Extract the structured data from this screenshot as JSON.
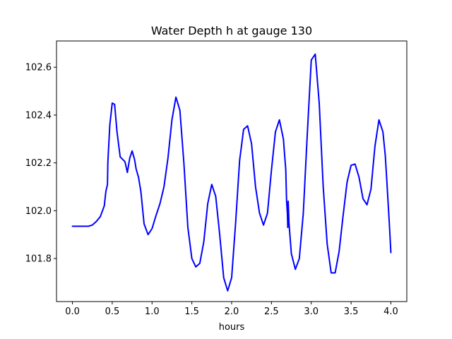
{
  "chart_data": {
    "type": "line",
    "title": "Water Depth h at gauge 130",
    "xlabel": "hours",
    "ylabel": "",
    "xlim": [
      -0.2,
      4.2
    ],
    "ylim": [
      101.62,
      102.71
    ],
    "xticks": [
      0.0,
      0.5,
      1.0,
      1.5,
      2.0,
      2.5,
      3.0,
      3.5,
      4.0
    ],
    "xtick_labels": [
      "0.0",
      "0.5",
      "1.0",
      "1.5",
      "2.0",
      "2.5",
      "3.0",
      "3.5",
      "4.0"
    ],
    "yticks": [
      101.8,
      102.0,
      102.2,
      102.4,
      102.6
    ],
    "ytick_labels": [
      "101.8",
      "102.0",
      "102.2",
      "102.4",
      "102.6"
    ],
    "grid": false,
    "series": [
      {
        "color": "#0000ff",
        "x": [
          0.0,
          0.1,
          0.2,
          0.25,
          0.3,
          0.35,
          0.4,
          0.42,
          0.44,
          0.445,
          0.45,
          0.47,
          0.5,
          0.53,
          0.56,
          0.6,
          0.63,
          0.66,
          0.69,
          0.72,
          0.75,
          0.78,
          0.8,
          0.83,
          0.86,
          0.9,
          0.95,
          1.0,
          1.05,
          1.1,
          1.15,
          1.2,
          1.25,
          1.3,
          1.35,
          1.4,
          1.45,
          1.5,
          1.55,
          1.6,
          1.65,
          1.7,
          1.75,
          1.8,
          1.85,
          1.9,
          1.95,
          2.0,
          2.05,
          2.1,
          2.15,
          2.2,
          2.25,
          2.3,
          2.35,
          2.4,
          2.45,
          2.5,
          2.55,
          2.6,
          2.65,
          2.68,
          2.69,
          2.7,
          2.705,
          2.71,
          2.715,
          2.72,
          2.75,
          2.8,
          2.85,
          2.9,
          2.95,
          3.0,
          3.05,
          3.1,
          3.15,
          3.2,
          3.25,
          3.3,
          3.35,
          3.4,
          3.45,
          3.5,
          3.55,
          3.6,
          3.65,
          3.7,
          3.75,
          3.8,
          3.85,
          3.9,
          3.93,
          3.95,
          3.98,
          4.0
        ],
        "y": [
          101.935,
          101.935,
          101.935,
          101.94,
          101.955,
          101.975,
          102.02,
          102.08,
          102.11,
          102.2,
          102.235,
          102.36,
          102.45,
          102.445,
          102.33,
          102.225,
          102.215,
          102.205,
          102.16,
          102.22,
          102.25,
          102.215,
          102.175,
          102.14,
          102.08,
          101.945,
          101.9,
          101.925,
          101.98,
          102.03,
          102.1,
          102.22,
          102.38,
          102.475,
          102.42,
          102.2,
          101.93,
          101.8,
          101.765,
          101.78,
          101.87,
          102.03,
          102.11,
          102.06,
          101.9,
          101.72,
          101.665,
          101.72,
          101.95,
          102.21,
          102.34,
          102.355,
          102.28,
          102.1,
          101.99,
          101.94,
          101.99,
          102.17,
          102.33,
          102.38,
          102.3,
          102.17,
          102.04,
          101.99,
          101.93,
          102.04,
          102.0,
          101.95,
          101.82,
          101.755,
          101.8,
          101.99,
          102.32,
          102.63,
          102.655,
          102.45,
          102.1,
          101.86,
          101.74,
          101.74,
          101.83,
          101.98,
          102.12,
          102.19,
          102.195,
          102.14,
          102.05,
          102.025,
          102.09,
          102.27,
          102.38,
          102.33,
          102.23,
          102.12,
          101.95,
          101.825
        ]
      }
    ]
  }
}
